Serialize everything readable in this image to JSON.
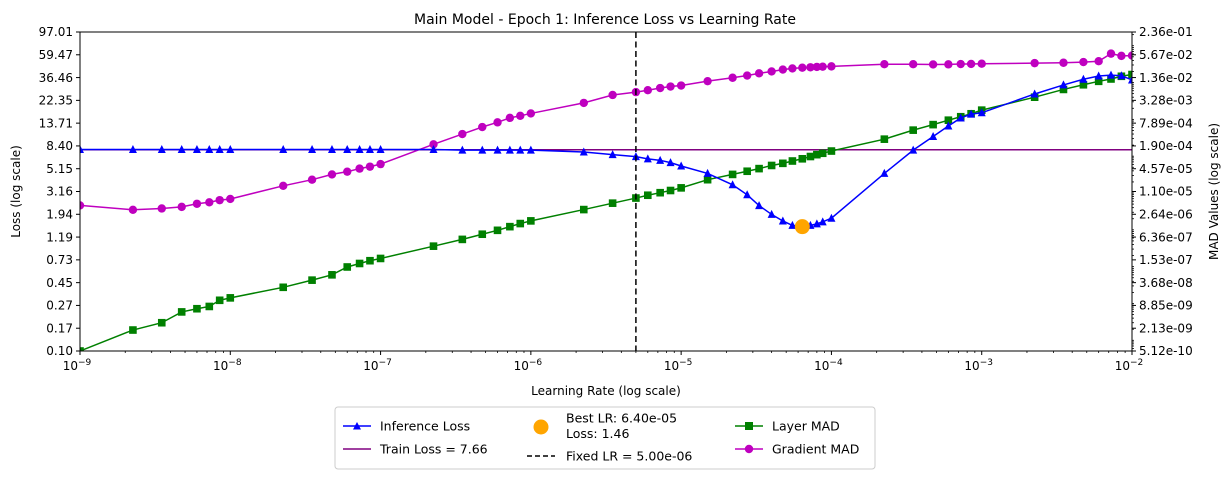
{
  "chart_data": {
    "type": "line",
    "title": "Main Model - Epoch 1: Inference Loss vs Learning Rate",
    "xlabel": "Learning Rate (log scale)",
    "ylabel_left": "Loss (log scale)",
    "ylabel_right": "MAD Values (log scale)",
    "x_scale": "log",
    "y_scale_left": "log",
    "y_scale_right": "log",
    "xlim": [
      1e-09,
      0.01
    ],
    "ylim_left": [
      0.1,
      97.01
    ],
    "ylim_right": [
      5.12e-10,
      0.236
    ],
    "x_ticks": [
      {
        "value": 1e-09,
        "base": "10",
        "exp": "−9"
      },
      {
        "value": 1e-08,
        "base": "10",
        "exp": "−8"
      },
      {
        "value": 1e-07,
        "base": "10",
        "exp": "−7"
      },
      {
        "value": 1e-06,
        "base": "10",
        "exp": "−6"
      },
      {
        "value": 1e-05,
        "base": "10",
        "exp": "−5"
      },
      {
        "value": 0.0001,
        "base": "10",
        "exp": "−4"
      },
      {
        "value": 0.001,
        "base": "10",
        "exp": "−3"
      },
      {
        "value": 0.01,
        "base": "10",
        "exp": "−2"
      }
    ],
    "y_ticks_left": [
      "0.10",
      "0.17",
      "0.27",
      "0.45",
      "0.73",
      "1.19",
      "1.94",
      "3.16",
      "5.15",
      "8.40",
      "13.71",
      "22.35",
      "36.46",
      "59.47",
      "97.01"
    ],
    "y_ticks_right": [
      "5.12e-10",
      "2.13e-09",
      "8.85e-09",
      "3.68e-08",
      "1.53e-07",
      "6.36e-07",
      "2.64e-06",
      "1.10e-05",
      "4.57e-05",
      "1.90e-04",
      "7.89e-04",
      "3.28e-03",
      "1.36e-02",
      "5.67e-02",
      "2.36e-01"
    ],
    "series": [
      {
        "name": "Inference Loss",
        "axis": "left",
        "color": "#0000ff",
        "marker": "triangle",
        "x": [
          1e-09,
          2.25e-09,
          3.5e-09,
          4.75e-09,
          6e-09,
          7.25e-09,
          8.5e-09,
          1e-08,
          2.25e-08,
          3.5e-08,
          4.75e-08,
          6e-08,
          7.25e-08,
          8.5e-08,
          1e-07,
          2.25e-07,
          3.5e-07,
          4.75e-07,
          6e-07,
          7.25e-07,
          8.5e-07,
          1e-06,
          2.25e-06,
          3.5e-06,
          5e-06,
          6e-06,
          7.25e-06,
          8.5e-06,
          1e-05,
          1.5e-05,
          2.2e-05,
          2.75e-05,
          3.3e-05,
          4e-05,
          4.75e-05,
          5.5e-05,
          6.4e-05,
          7.25e-05,
          8e-05,
          8.75e-05,
          0.0001,
          0.000225,
          0.00035,
          0.000475,
          0.0006,
          0.000725,
          0.00085,
          0.001,
          0.00225,
          0.0035,
          0.00475,
          0.006,
          0.00725,
          0.0085,
          0.01
        ],
        "y": [
          7.7,
          7.7,
          7.7,
          7.7,
          7.7,
          7.7,
          7.7,
          7.7,
          7.7,
          7.7,
          7.7,
          7.7,
          7.7,
          7.7,
          7.7,
          7.7,
          7.6,
          7.6,
          7.6,
          7.6,
          7.6,
          7.6,
          7.3,
          6.9,
          6.6,
          6.3,
          6.1,
          5.8,
          5.4,
          4.6,
          3.6,
          2.9,
          2.3,
          1.9,
          1.65,
          1.5,
          1.46,
          1.5,
          1.55,
          1.62,
          1.75,
          4.6,
          7.6,
          10.2,
          12.8,
          15.2,
          16.5,
          17.0,
          25.5,
          31,
          35,
          37.6,
          38.3,
          37.8,
          34.5
        ]
      },
      {
        "name": "Train Loss = 7.66",
        "axis": "left",
        "color": "#800080",
        "marker": "none",
        "x": [
          1e-09,
          0.01
        ],
        "y": [
          7.66,
          7.66
        ]
      },
      {
        "name": "Layer MAD",
        "axis": "right",
        "color": "#008000",
        "marker": "square",
        "x": [
          1e-09,
          2.25e-09,
          3.5e-09,
          4.75e-09,
          6e-09,
          7.25e-09,
          8.5e-09,
          1e-08,
          2.25e-08,
          3.5e-08,
          4.75e-08,
          6e-08,
          7.25e-08,
          8.5e-08,
          1e-07,
          2.25e-07,
          3.5e-07,
          4.75e-07,
          6e-07,
          7.25e-07,
          8.5e-07,
          1e-06,
          2.25e-06,
          3.5e-06,
          5e-06,
          6e-06,
          7.25e-06,
          8.5e-06,
          1e-05,
          1.5e-05,
          2.2e-05,
          2.75e-05,
          3.3e-05,
          4e-05,
          4.75e-05,
          5.5e-05,
          6.4e-05,
          7.25e-05,
          8e-05,
          8.75e-05,
          0.0001,
          0.000225,
          0.00035,
          0.000475,
          0.0006,
          0.000725,
          0.00085,
          0.001,
          0.00225,
          0.0035,
          0.00475,
          0.006,
          0.00725,
          0.0085,
          0.01
        ],
        "y": [
          5.12e-10,
          1.9e-09,
          3e-09,
          5.9e-09,
          7.2e-09,
          8.3e-09,
          1.22e-08,
          1.42e-08,
          2.75e-08,
          4.3e-08,
          6e-08,
          9.8e-08,
          1.22e-07,
          1.45e-07,
          1.67e-07,
          3.6e-07,
          5.5e-07,
          7.6e-07,
          9.7e-07,
          1.22e-06,
          1.48e-06,
          1.75e-06,
          3.55e-06,
          5.3e-06,
          7.3e-06,
          8.7e-06,
          1.02e-05,
          1.17e-05,
          1.38e-05,
          2.3e-05,
          3.2e-05,
          3.9e-05,
          4.6e-05,
          5.6e-05,
          6.4e-05,
          7.4e-05,
          8.5e-05,
          9.8e-05,
          0.00011,
          0.00012,
          0.000138,
          0.00029,
          0.00051,
          0.00072,
          0.00095,
          0.00118,
          0.00142,
          0.00178,
          0.004,
          0.0065,
          0.0087,
          0.0108,
          0.0125,
          0.0148,
          0.0165
        ]
      },
      {
        "name": "Gradient MAD",
        "axis": "right",
        "color": "#bf00bf",
        "marker": "circle",
        "x": [
          1e-09,
          2.25e-09,
          3.5e-09,
          4.75e-09,
          6e-09,
          7.25e-09,
          8.5e-09,
          1e-08,
          2.25e-08,
          3.5e-08,
          4.75e-08,
          6e-08,
          7.25e-08,
          8.5e-08,
          1e-07,
          2.25e-07,
          3.5e-07,
          4.75e-07,
          6e-07,
          7.25e-07,
          8.5e-07,
          1e-06,
          2.25e-06,
          3.5e-06,
          5e-06,
          6e-06,
          7.25e-06,
          8.5e-06,
          1e-05,
          1.5e-05,
          2.2e-05,
          2.75e-05,
          3.3e-05,
          4e-05,
          4.75e-05,
          5.5e-05,
          6.4e-05,
          7.25e-05,
          8e-05,
          8.75e-05,
          0.0001,
          0.000225,
          0.00035,
          0.000475,
          0.0006,
          0.000725,
          0.00085,
          0.001,
          0.00225,
          0.0035,
          0.00475,
          0.006,
          0.00725,
          0.0085,
          0.01
        ],
        "y": [
          4.6e-06,
          3.5e-06,
          3.8e-06,
          4.2e-06,
          5.1e-06,
          5.6e-06,
          6.4e-06,
          6.9e-06,
          1.57e-05,
          2.3e-05,
          3.2e-05,
          3.8e-05,
          4.6e-05,
          5.2e-05,
          6.1e-05,
          0.00021,
          0.0004,
          0.00062,
          0.00083,
          0.0011,
          0.00125,
          0.00145,
          0.0028,
          0.0046,
          0.0055,
          0.0062,
          0.0071,
          0.0078,
          0.0083,
          0.0109,
          0.0135,
          0.0155,
          0.0178,
          0.02,
          0.0225,
          0.0242,
          0.0253,
          0.026,
          0.0266,
          0.027,
          0.0275,
          0.0315,
          0.0315,
          0.031,
          0.0312,
          0.0318,
          0.032,
          0.0325,
          0.0337,
          0.0345,
          0.036,
          0.038,
          0.061,
          0.053,
          0.054
        ]
      }
    ],
    "best_point": {
      "x": 6.4e-05,
      "y": 1.46,
      "color": "#ffa500",
      "label_line1": "Best LR: 6.40e-05",
      "label_line2": "Loss: 1.46"
    },
    "fixed_lr": {
      "x": 5e-06,
      "color": "#000000",
      "label": "Fixed LR = 5.00e-06"
    },
    "legend": {
      "placement": "bottom-center",
      "items": [
        {
          "label": "Inference Loss"
        },
        {
          "label": "Train Loss = 7.66"
        },
        {
          "label": "Best LR: 6.40e-05",
          "label2": "Loss: 1.46"
        },
        {
          "label": "Fixed LR = 5.00e-06"
        },
        {
          "label": "Layer MAD"
        },
        {
          "label": "Gradient MAD"
        }
      ]
    },
    "grid": false
  }
}
